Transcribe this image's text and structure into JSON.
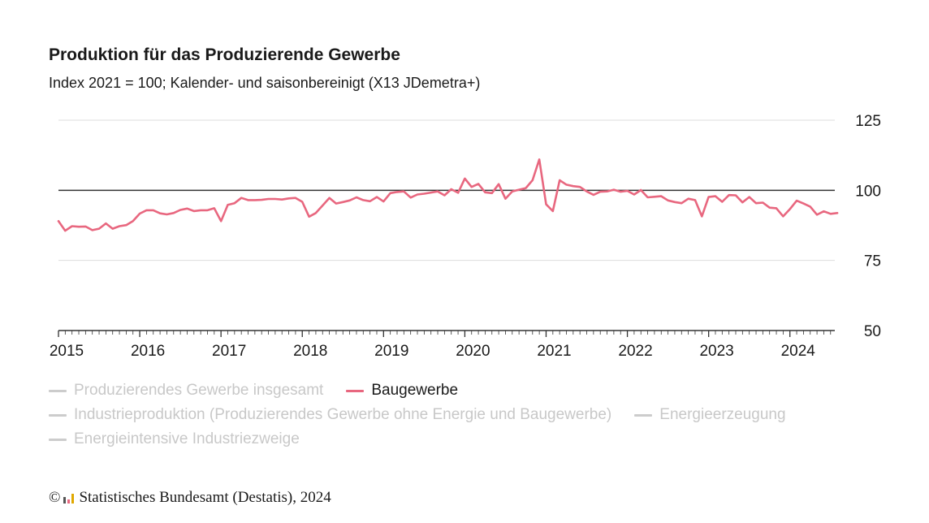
{
  "header": {
    "title": "Produktion für das Produzierende Gewerbe",
    "subtitle": "Index 2021 = 100; Kalender- und saisonbereinigt (X13 JDemetra+)"
  },
  "legend": {
    "items": [
      {
        "label": "Produzierendes Gewerbe insgesamt",
        "active": false,
        "color": "#cccccc"
      },
      {
        "label": "Baugewerbe",
        "active": true,
        "color": "#e8677f"
      },
      {
        "label": "Industrieproduktion (Produzierendes Gewerbe ohne Energie und Baugewerbe)",
        "active": false,
        "color": "#cccccc"
      },
      {
        "label": "Energieerzeugung",
        "active": false,
        "color": "#cccccc"
      },
      {
        "label": "Energieintensive Industriezweige",
        "active": false,
        "color": "#cccccc"
      }
    ]
  },
  "footer": {
    "copyright_symbol": "©",
    "source": "Statistisches Bundesamt (Destatis), 2024"
  },
  "chart_data": {
    "type": "line",
    "ylim": [
      50,
      125
    ],
    "yticks": [
      50,
      75,
      100,
      125
    ],
    "reference_line": 100,
    "xticks": [
      "2015",
      "2016",
      "2017",
      "2018",
      "2019",
      "2020",
      "2021",
      "2022",
      "2023",
      "2024"
    ],
    "x_start": "2015-01",
    "grid": true,
    "legend_position": "bottom",
    "series": [
      {
        "name": "Baugewerbe",
        "color": "#e8677f",
        "values": [
          89.0,
          85.6,
          87.2,
          87.0,
          87.1,
          85.8,
          86.3,
          88.2,
          86.3,
          87.2,
          87.6,
          89.0,
          91.7,
          92.9,
          92.9,
          91.8,
          91.4,
          91.9,
          93.0,
          93.5,
          92.6,
          92.9,
          92.9,
          93.6,
          89.0,
          94.8,
          95.4,
          97.3,
          96.5,
          96.5,
          96.6,
          96.9,
          96.9,
          96.7,
          97.1,
          97.3,
          95.9,
          90.6,
          91.9,
          94.6,
          97.3,
          95.3,
          95.8,
          96.4,
          97.5,
          96.5,
          96.1,
          97.6,
          96.0,
          99.0,
          99.4,
          99.6,
          97.4,
          98.5,
          98.8,
          99.2,
          99.6,
          98.2,
          100.4,
          99.1,
          104.2,
          101.2,
          102.3,
          99.3,
          99.0,
          102.2,
          97.0,
          99.6,
          100.2,
          100.8,
          103.6,
          111.0,
          95.0,
          92.6,
          103.6,
          102.0,
          101.5,
          101.2,
          99.6,
          98.4,
          99.5,
          99.6,
          100.2,
          99.5,
          99.8,
          98.5,
          100.1,
          97.5,
          97.7,
          97.9,
          96.4,
          95.8,
          95.4,
          97.0,
          96.5,
          90.7,
          97.6,
          97.9,
          95.9,
          98.3,
          98.2,
          95.7,
          97.6,
          95.4,
          95.6,
          93.8,
          93.6,
          90.7,
          93.3,
          96.3,
          95.3,
          94.2,
          91.3,
          92.5,
          91.6,
          91.9
        ]
      }
    ]
  }
}
